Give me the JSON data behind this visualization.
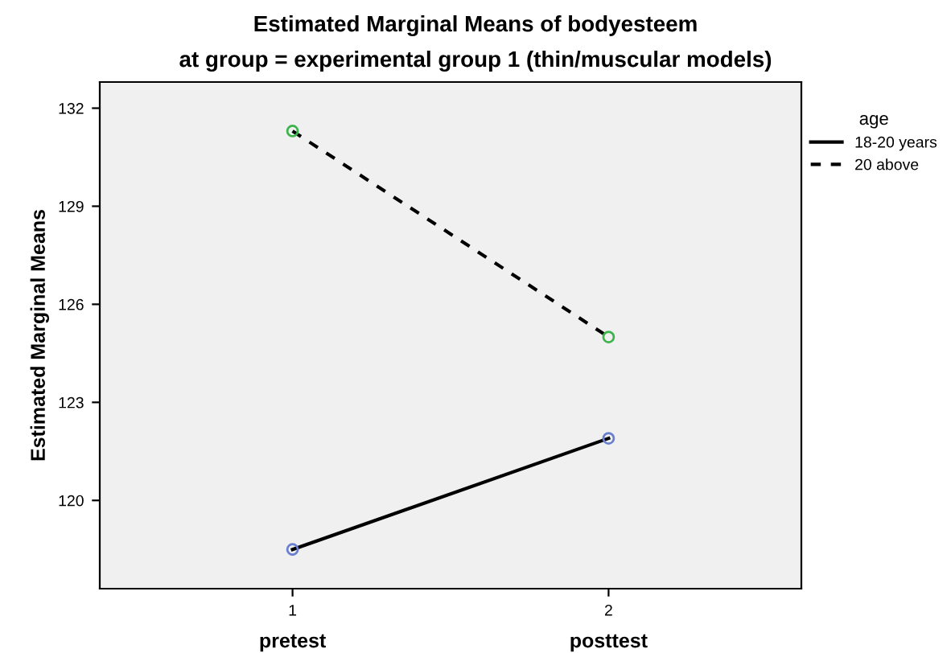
{
  "chart_data": {
    "type": "line",
    "title": "Estimated Marginal Means of bodyesteem",
    "subtitle": "at group = experimental group 1 (thin/muscular models)",
    "ylabel": "Estimated Marginal Means",
    "legend_title": "age",
    "categories": [
      "1",
      "2"
    ],
    "series": [
      {
        "name": "18-20 years",
        "color": "#000000",
        "colors": [
          "#6b7fd0",
          "#6b7fd0"
        ],
        "line_style": "solid",
        "values": [
          118.5,
          121.9
        ]
      },
      {
        "name": "20 above",
        "color": "#000000",
        "colors": [
          "#3cb44b",
          "#3cb44b"
        ],
        "line_style": "dashed",
        "values": [
          131.3,
          125.0
        ]
      }
    ],
    "annotations": [
      "pretest",
      "posttest"
    ],
    "ylim": [
      117.3,
      132.8
    ],
    "yticks": [
      120,
      123,
      126,
      129,
      132
    ],
    "marker": "circle",
    "grid": false,
    "legend": "top right"
  }
}
